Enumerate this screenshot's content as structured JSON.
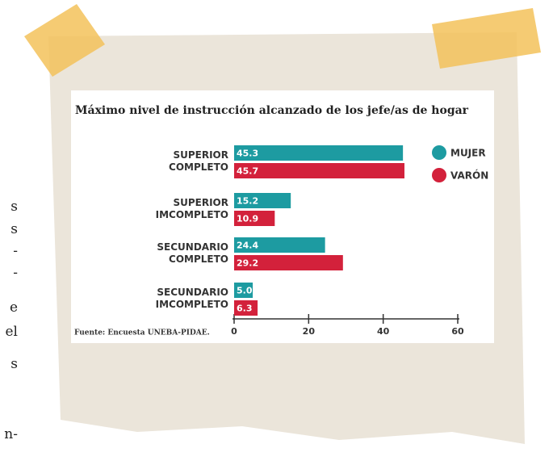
{
  "chart_data": {
    "type": "barh",
    "title": "Máximo nivel de instrucción alcanzado de los jefe/as de hogar",
    "categories": [
      "SUPERIOR\nCOMPLETO",
      "SUPERIOR\nIMCOMPLETO",
      "SECUNDARIO\nCOMPLETO",
      "SECUNDARIO\nIMCOMPLETO"
    ],
    "series": [
      {
        "name": "MUJER",
        "color": "#1d9ba1",
        "values": [
          45.3,
          15.2,
          24.4,
          5.0
        ],
        "value_labels": [
          "45.3",
          "15.2",
          "24.4",
          "5.0"
        ]
      },
      {
        "name": "VARÓN",
        "color": "#d3213b",
        "values": [
          45.7,
          10.9,
          29.2,
          6.3
        ],
        "value_labels": [
          "45.7",
          "10.9",
          "29.2",
          "6.3"
        ]
      }
    ],
    "xlim": [
      0,
      60
    ],
    "xticks": [
      0,
      20,
      40,
      60
    ],
    "legend": "top-right",
    "source": "Fuente: Encuesta UNEBA-PIDAE."
  },
  "side_text": [
    "s",
    "s",
    "-",
    "-",
    "e",
    "el",
    "s",
    "n-"
  ]
}
